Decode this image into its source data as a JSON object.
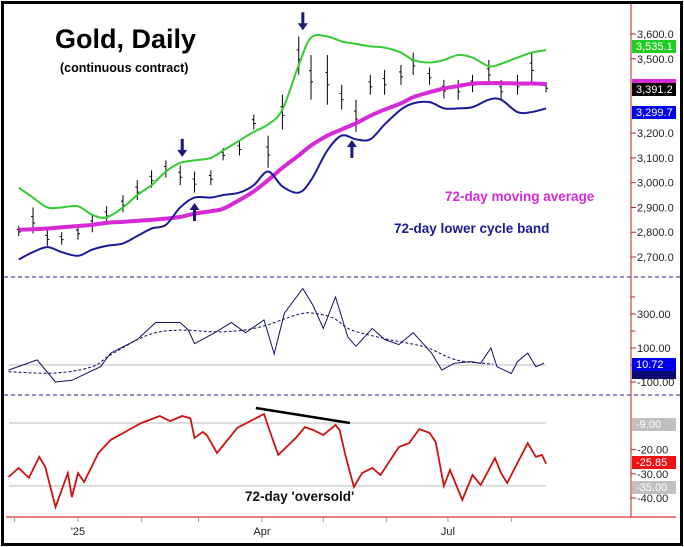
{
  "title": "Gold, Daily",
  "subtitle": "(continuous contract)",
  "chart_data": [
    {
      "type": "bar",
      "panel": "price",
      "grid": false,
      "ylim": [
        2650,
        3650
      ],
      "yticks": [
        {
          "value": 3600,
          "label": "3,600.0"
        },
        {
          "value": 3500,
          "label": "3,500.0"
        },
        {
          "value": 3200,
          "label": "3,200.0"
        },
        {
          "value": 3100,
          "label": "3,100.0"
        },
        {
          "value": 3000,
          "label": "3,000.0"
        },
        {
          "value": 2900,
          "label": "2,900.0"
        },
        {
          "value": 2800,
          "label": "2,800.0"
        },
        {
          "value": 2700,
          "label": "2,700.0"
        }
      ],
      "dates": [
        "2024-12-03",
        "2024-12-10",
        "2024-12-17",
        "2024-12-24",
        "2025-01-01",
        "2025-01-08",
        "2025-01-15",
        "2025-01-23",
        "2025-01-30",
        "2025-02-06",
        "2025-02-13",
        "2025-02-20",
        "2025-02-27",
        "2025-03-07",
        "2025-03-13",
        "2025-03-21",
        "2025-03-28",
        "2025-04-04",
        "2025-04-11",
        "2025-04-19",
        "2025-04-25",
        "2025-05-03",
        "2025-05-10",
        "2025-05-17",
        "2025-05-24",
        "2025-05-31",
        "2025-06-08",
        "2025-06-14",
        "2025-06-22",
        "2025-06-29",
        "2025-07-06",
        "2025-07-13",
        "2025-07-21",
        "2025-07-27",
        "2025-08-04",
        "2025-08-11",
        "2025-08-18"
      ],
      "price_high": [
        2825,
        2900,
        2810,
        2800,
        2830,
        2870,
        2905,
        2950,
        3010,
        3050,
        3090,
        3070,
        3045,
        3050,
        3140,
        3170,
        3275,
        3190,
        3355,
        3590,
        3515,
        3515,
        3395,
        3335,
        3435,
        3455,
        3475,
        3525,
        3465,
        3415,
        3415,
        3435,
        3495,
        3415,
        3435,
        3525,
        3405
      ],
      "price_low": [
        2785,
        2795,
        2745,
        2750,
        2770,
        2800,
        2840,
        2880,
        2930,
        2980,
        3020,
        2990,
        2960,
        2990,
        3090,
        3110,
        3215,
        3060,
        3215,
        3435,
        3335,
        3315,
        3295,
        3205,
        3355,
        3355,
        3395,
        3435,
        3395,
        3340,
        3335,
        3365,
        3395,
        3335,
        3355,
        3405,
        3365
      ],
      "series": [
        {
          "key": "upper_band",
          "color": "#33cc33",
          "values": [
            2980,
            2940,
            2900,
            2900,
            2905,
            2870,
            2860,
            2900,
            2950,
            2990,
            3045,
            3080,
            3090,
            3100,
            3130,
            3170,
            3205,
            3235,
            3295,
            3475,
            3585,
            3590,
            3570,
            3560,
            3550,
            3545,
            3525,
            3495,
            3485,
            3495,
            3515,
            3505,
            3470,
            3480,
            3505,
            3525,
            3535.1
          ]
        },
        {
          "key": "moving_average",
          "name": "72-day moving average",
          "color": "#d62ad6",
          "values": [
            2810,
            2812,
            2815,
            2820,
            2825,
            2830,
            2838,
            2842,
            2846,
            2850,
            2855,
            2862,
            2875,
            2885,
            2895,
            2930,
            2965,
            3010,
            3060,
            3110,
            3150,
            3190,
            3215,
            3240,
            3270,
            3295,
            3320,
            3345,
            3365,
            3380,
            3390,
            3400,
            3402,
            3402,
            3400,
            3400,
            3398
          ]
        },
        {
          "key": "lower_band",
          "name": "72-day lower cycle band",
          "color": "#1a1a99",
          "values": [
            2690,
            2720,
            2740,
            2720,
            2705,
            2730,
            2745,
            2755,
            2785,
            2815,
            2830,
            2900,
            2940,
            2940,
            2950,
            2960,
            2990,
            3045,
            2985,
            2960,
            3010,
            3130,
            3190,
            3175,
            3175,
            3235,
            3295,
            3320,
            3325,
            3300,
            3300,
            3305,
            3335,
            3335,
            3285,
            3285,
            3299.7
          ]
        }
      ],
      "last_values": [
        {
          "label": "3,535.1",
          "color": "#22cc22",
          "text_color": "#ffffff"
        },
        {
          "label": "3,391.2",
          "color": "#000000",
          "text_color": "#ffffff"
        },
        {
          "label": "3,299.7",
          "color": "#0000ee",
          "text_color": "#ffffff"
        }
      ],
      "arrows": [
        {
          "direction": "down",
          "date": "2025-02-21",
          "price": 3104
        },
        {
          "direction": "up",
          "date": "2025-02-27",
          "price": 2918
        },
        {
          "direction": "down",
          "date": "2025-04-21",
          "price": 3615
        },
        {
          "direction": "up",
          "date": "2025-05-15",
          "price": 3172
        }
      ],
      "annotations": [
        {
          "text": "72-day moving average",
          "color": "#d62ad6"
        },
        {
          "text": "72-day lower cycle band",
          "color": "#1a1a99"
        }
      ]
    },
    {
      "type": "line",
      "panel": "oscillator",
      "ylim": [
        -150,
        500
      ],
      "yticks": [
        {
          "value": 300,
          "label": "300.00"
        },
        {
          "value": 100,
          "label": "100.00"
        },
        {
          "value": -100,
          "label": "-100.00"
        }
      ],
      "reference_line": 0,
      "series": [
        {
          "key": "oscillator",
          "color": "#101060",
          "points": [
            [
              "2024-11-28",
              -30
            ],
            [
              "2024-12-12",
              30
            ],
            [
              "2024-12-21",
              -100
            ],
            [
              "2024-12-29",
              -90
            ],
            [
              "2025-01-12",
              -10
            ],
            [
              "2025-01-17",
              70
            ],
            [
              "2025-01-30",
              150
            ],
            [
              "2025-02-08",
              250
            ],
            [
              "2025-02-20",
              250
            ],
            [
              "2025-02-24",
              205
            ],
            [
              "2025-02-27",
              125
            ],
            [
              "2025-03-09",
              190
            ],
            [
              "2025-03-17",
              250
            ],
            [
              "2025-03-24",
              190
            ],
            [
              "2025-04-02",
              265
            ],
            [
              "2025-04-07",
              65
            ],
            [
              "2025-04-12",
              305
            ],
            [
              "2025-04-21",
              450
            ],
            [
              "2025-04-26",
              350
            ],
            [
              "2025-05-01",
              215
            ],
            [
              "2025-05-07",
              400
            ],
            [
              "2025-05-13",
              165
            ],
            [
              "2025-05-17",
              110
            ],
            [
              "2025-05-25",
              215
            ],
            [
              "2025-05-31",
              150
            ],
            [
              "2025-06-07",
              120
            ],
            [
              "2025-06-14",
              190
            ],
            [
              "2025-06-23",
              70
            ],
            [
              "2025-06-28",
              -30
            ],
            [
              "2025-07-04",
              10
            ],
            [
              "2025-07-12",
              20
            ],
            [
              "2025-07-17",
              10
            ],
            [
              "2025-07-22",
              100
            ],
            [
              "2025-07-25",
              -10
            ],
            [
              "2025-08-01",
              -50
            ],
            [
              "2025-08-04",
              20
            ],
            [
              "2025-08-09",
              70
            ],
            [
              "2025-08-13",
              -10
            ],
            [
              "2025-08-17",
              10.72
            ]
          ]
        },
        {
          "key": "oscillator_average",
          "color": "#101060",
          "dashed": true,
          "points": [
            [
              "2024-11-28",
              -40
            ],
            [
              "2024-12-21",
              -47
            ],
            [
              "2025-01-08",
              -10
            ],
            [
              "2025-01-17",
              60
            ],
            [
              "2025-02-04",
              175
            ],
            [
              "2025-02-19",
              205
            ],
            [
              "2025-03-12",
              195
            ],
            [
              "2025-03-30",
              220
            ],
            [
              "2025-04-18",
              295
            ],
            [
              "2025-04-26",
              305
            ],
            [
              "2025-05-06",
              275
            ],
            [
              "2025-05-15",
              205
            ],
            [
              "2025-06-02",
              150
            ],
            [
              "2025-06-20",
              105
            ],
            [
              "2025-07-05",
              30
            ],
            [
              "2025-07-23",
              5
            ]
          ]
        }
      ],
      "last_values": [
        {
          "label": "10.72",
          "color": "#0000ee",
          "text_color": "#ffffff"
        }
      ]
    },
    {
      "type": "line",
      "panel": "cycle-indicator",
      "ylim": [
        -43,
        -2
      ],
      "yticks": [
        {
          "value": -20,
          "label": "-20.00"
        },
        {
          "value": -30,
          "label": "-30.00"
        },
        {
          "value": -40,
          "label": "-40.00"
        }
      ],
      "reference_lines": [
        {
          "value": -9,
          "label": "-9.00"
        },
        {
          "value": -35,
          "label": "-35.00"
        }
      ],
      "series": [
        {
          "key": "cycle_indicator",
          "color": "#cc1111",
          "points": [
            [
              "2024-11-28",
              -31.3
            ],
            [
              "2024-12-03",
              -27.6
            ],
            [
              "2024-12-08",
              -31.7
            ],
            [
              "2024-12-13",
              -23
            ],
            [
              "2024-12-16",
              -27.2
            ],
            [
              "2024-12-21",
              -43.7
            ],
            [
              "2024-12-27",
              -29.7
            ],
            [
              "2024-12-29",
              -39.6
            ],
            [
              "2025-01-01",
              -29.7
            ],
            [
              "2025-01-04",
              -33.4
            ],
            [
              "2025-01-11",
              -21.4
            ],
            [
              "2025-01-17",
              -16
            ],
            [
              "2025-01-24",
              -12.7
            ],
            [
              "2025-02-01",
              -9
            ],
            [
              "2025-02-10",
              -6.1
            ],
            [
              "2025-02-15",
              -8.2
            ],
            [
              "2025-02-21",
              -6.1
            ],
            [
              "2025-02-25",
              -7
            ],
            [
              "2025-02-27",
              -15.2
            ],
            [
              "2025-03-03",
              -12.7
            ],
            [
              "2025-03-05",
              -14
            ],
            [
              "2025-03-10",
              -21.4
            ],
            [
              "2025-03-20",
              -11
            ],
            [
              "2025-03-29",
              -7
            ],
            [
              "2025-04-02",
              -5.3
            ],
            [
              "2025-04-06",
              -15.2
            ],
            [
              "2025-04-09",
              -22.2
            ],
            [
              "2025-04-18",
              -14.8
            ],
            [
              "2025-04-22",
              -10.7
            ],
            [
              "2025-04-26",
              -11.9
            ],
            [
              "2025-05-01",
              -14
            ],
            [
              "2025-05-07",
              -9.8
            ],
            [
              "2025-05-09",
              -11.9
            ],
            [
              "2025-05-12",
              -23
            ],
            [
              "2025-05-16",
              -35.4
            ],
            [
              "2025-05-20",
              -29.7
            ],
            [
              "2025-05-25",
              -27.6
            ],
            [
              "2025-05-29",
              -30.5
            ],
            [
              "2025-06-07",
              -18.9
            ],
            [
              "2025-06-12",
              -17.3
            ],
            [
              "2025-06-17",
              -11.5
            ],
            [
              "2025-06-22",
              -13.1
            ],
            [
              "2025-06-25",
              -16.9
            ],
            [
              "2025-06-29",
              -35
            ],
            [
              "2025-07-02",
              -28.4
            ],
            [
              "2025-07-08",
              -40.8
            ],
            [
              "2025-07-13",
              -30.5
            ],
            [
              "2025-07-17",
              -34.6
            ],
            [
              "2025-07-24",
              -23.5
            ],
            [
              "2025-07-27",
              -29.7
            ],
            [
              "2025-07-30",
              -33.8
            ],
            [
              "2025-08-09",
              -17.3
            ],
            [
              "2025-08-13",
              -23
            ],
            [
              "2025-08-16",
              -22.2
            ],
            [
              "2025-08-18",
              -25.85
            ]
          ]
        }
      ],
      "trendline": {
        "start": [
          "2025-03-29",
          -2.8
        ],
        "end": [
          "2025-05-14",
          -9
        ]
      },
      "last_values": [
        {
          "label": "-25.85",
          "color": "#ee1111",
          "text_color": "#ffffff"
        }
      ],
      "annotations": [
        {
          "text": "72-day 'oversold'",
          "color": "#111111"
        }
      ]
    }
  ],
  "x_axis": {
    "tick_dates": [
      "2024-12-01",
      "2025-01-01",
      "2025-02-01",
      "2025-03-01",
      "2025-04-01",
      "2025-05-01",
      "2025-06-01",
      "2025-07-01",
      "2025-08-01"
    ],
    "labels": [
      {
        "date": "2025-01-01",
        "label": "'25"
      },
      {
        "date": "2025-04-01",
        "label": "Apr"
      },
      {
        "date": "2025-07-01",
        "label": "Jul"
      }
    ]
  }
}
